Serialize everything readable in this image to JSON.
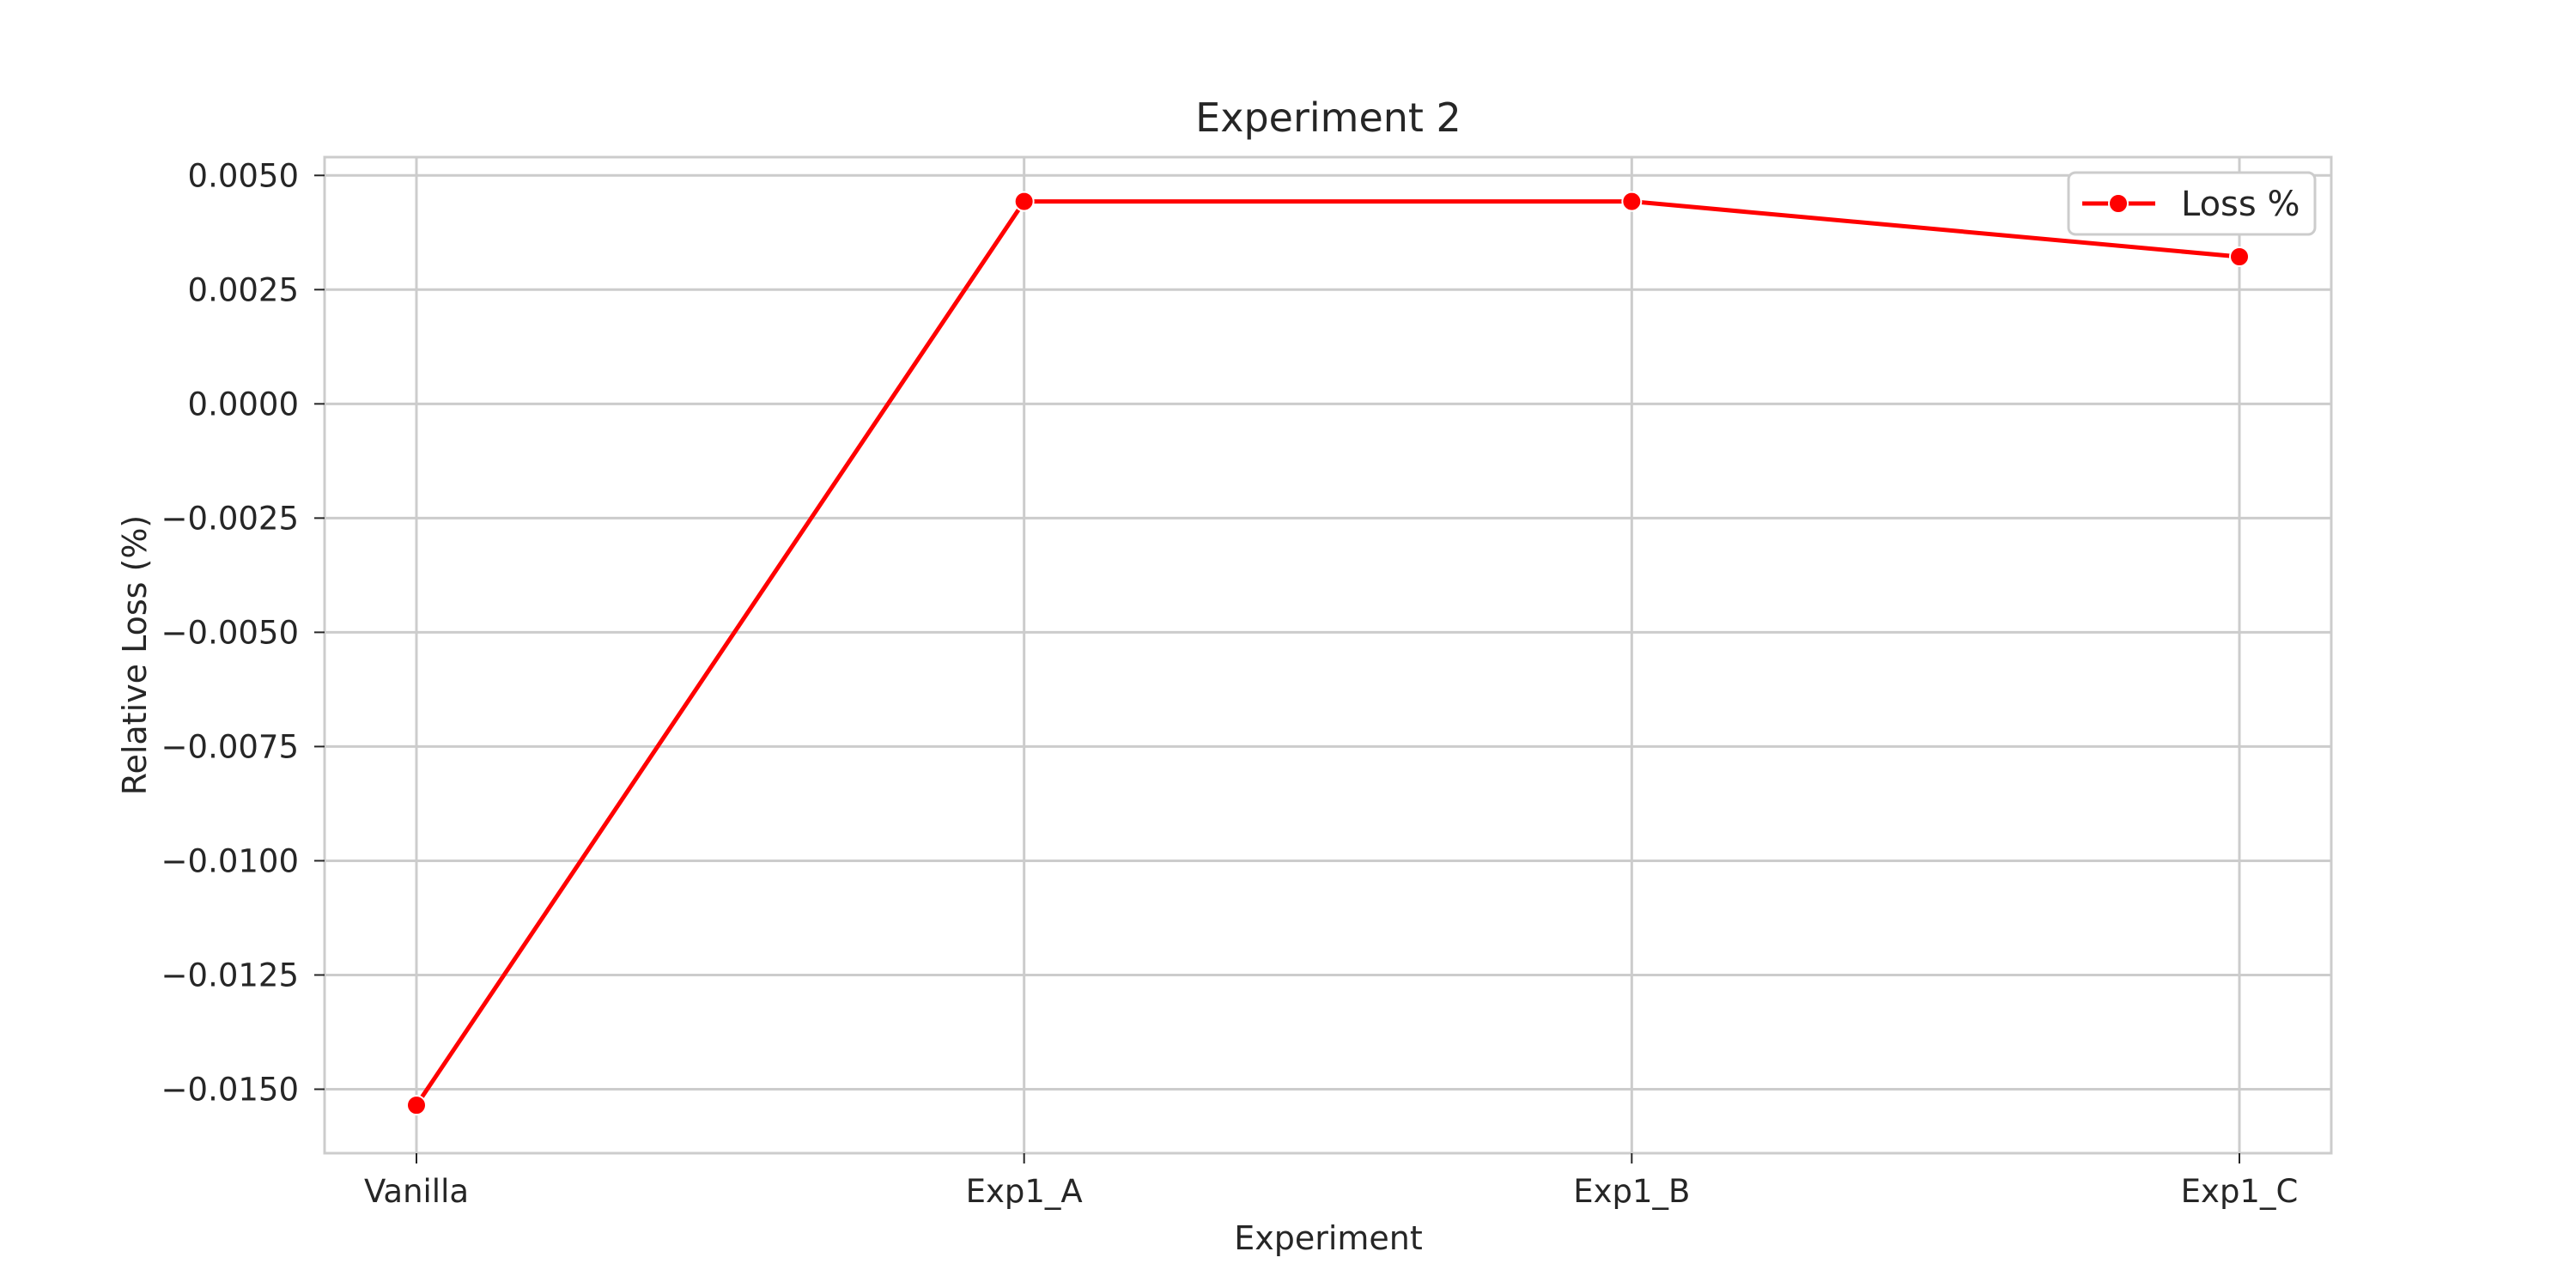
{
  "chart_data": {
    "type": "line",
    "title": "Experiment 2",
    "xlabel": "Experiment",
    "ylabel": "Relative Loss (%)",
    "categories": [
      "Vanilla",
      "Exp1_A",
      "Exp1_B",
      "Exp1_C"
    ],
    "series": [
      {
        "name": "Loss %",
        "values": [
          -0.01535,
          0.00443,
          0.00443,
          0.00322
        ],
        "color": "#ff0000",
        "marker": "circle"
      }
    ],
    "ylim": [
      -0.0164,
      0.0054
    ],
    "yticks": [
      0.005,
      0.0025,
      0.0,
      -0.0025,
      -0.005,
      -0.0075,
      -0.01,
      -0.0125,
      -0.015
    ],
    "ytick_labels": [
      "0.0050",
      "0.0025",
      "0.0000",
      "−0.0025",
      "−0.0050",
      "−0.0075",
      "−0.0100",
      "−0.0125",
      "−0.0150"
    ],
    "grid": true,
    "legend_position": "top-right"
  }
}
